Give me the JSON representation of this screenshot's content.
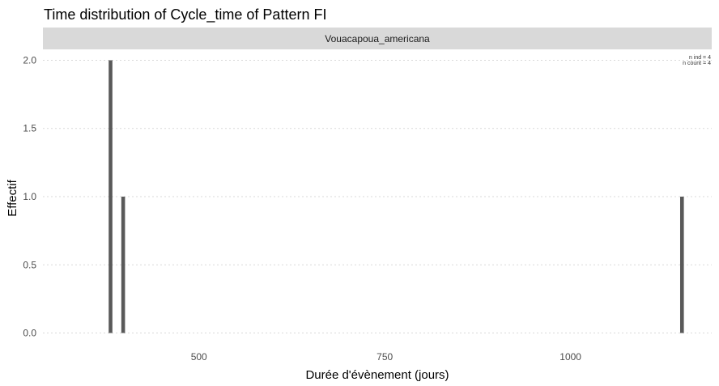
{
  "chart_data": {
    "type": "bar",
    "title": "Time distribution of Cycle_time of Pattern FI",
    "facet_label": "Vouacapoua_americana",
    "xlabel": "Durée d'évènement (jours)",
    "ylabel": "Effectif",
    "xlim": [
      290,
      1190
    ],
    "ylim": [
      -0.08,
      2.08
    ],
    "x_ticks": [
      500,
      750,
      1000
    ],
    "y_ticks": [
      0.0,
      0.5,
      1.0,
      1.5,
      2.0
    ],
    "y_tick_labels": [
      "0.0",
      "0.5",
      "1.0",
      "1.5",
      "2.0"
    ],
    "bar_width": 5,
    "bars": [
      {
        "x": 381,
        "y": 2
      },
      {
        "x": 398,
        "y": 1
      },
      {
        "x": 1150,
        "y": 1
      }
    ],
    "annotations": [
      "n ind =  4",
      "n count =  4"
    ],
    "grid": true,
    "legend": "none"
  }
}
